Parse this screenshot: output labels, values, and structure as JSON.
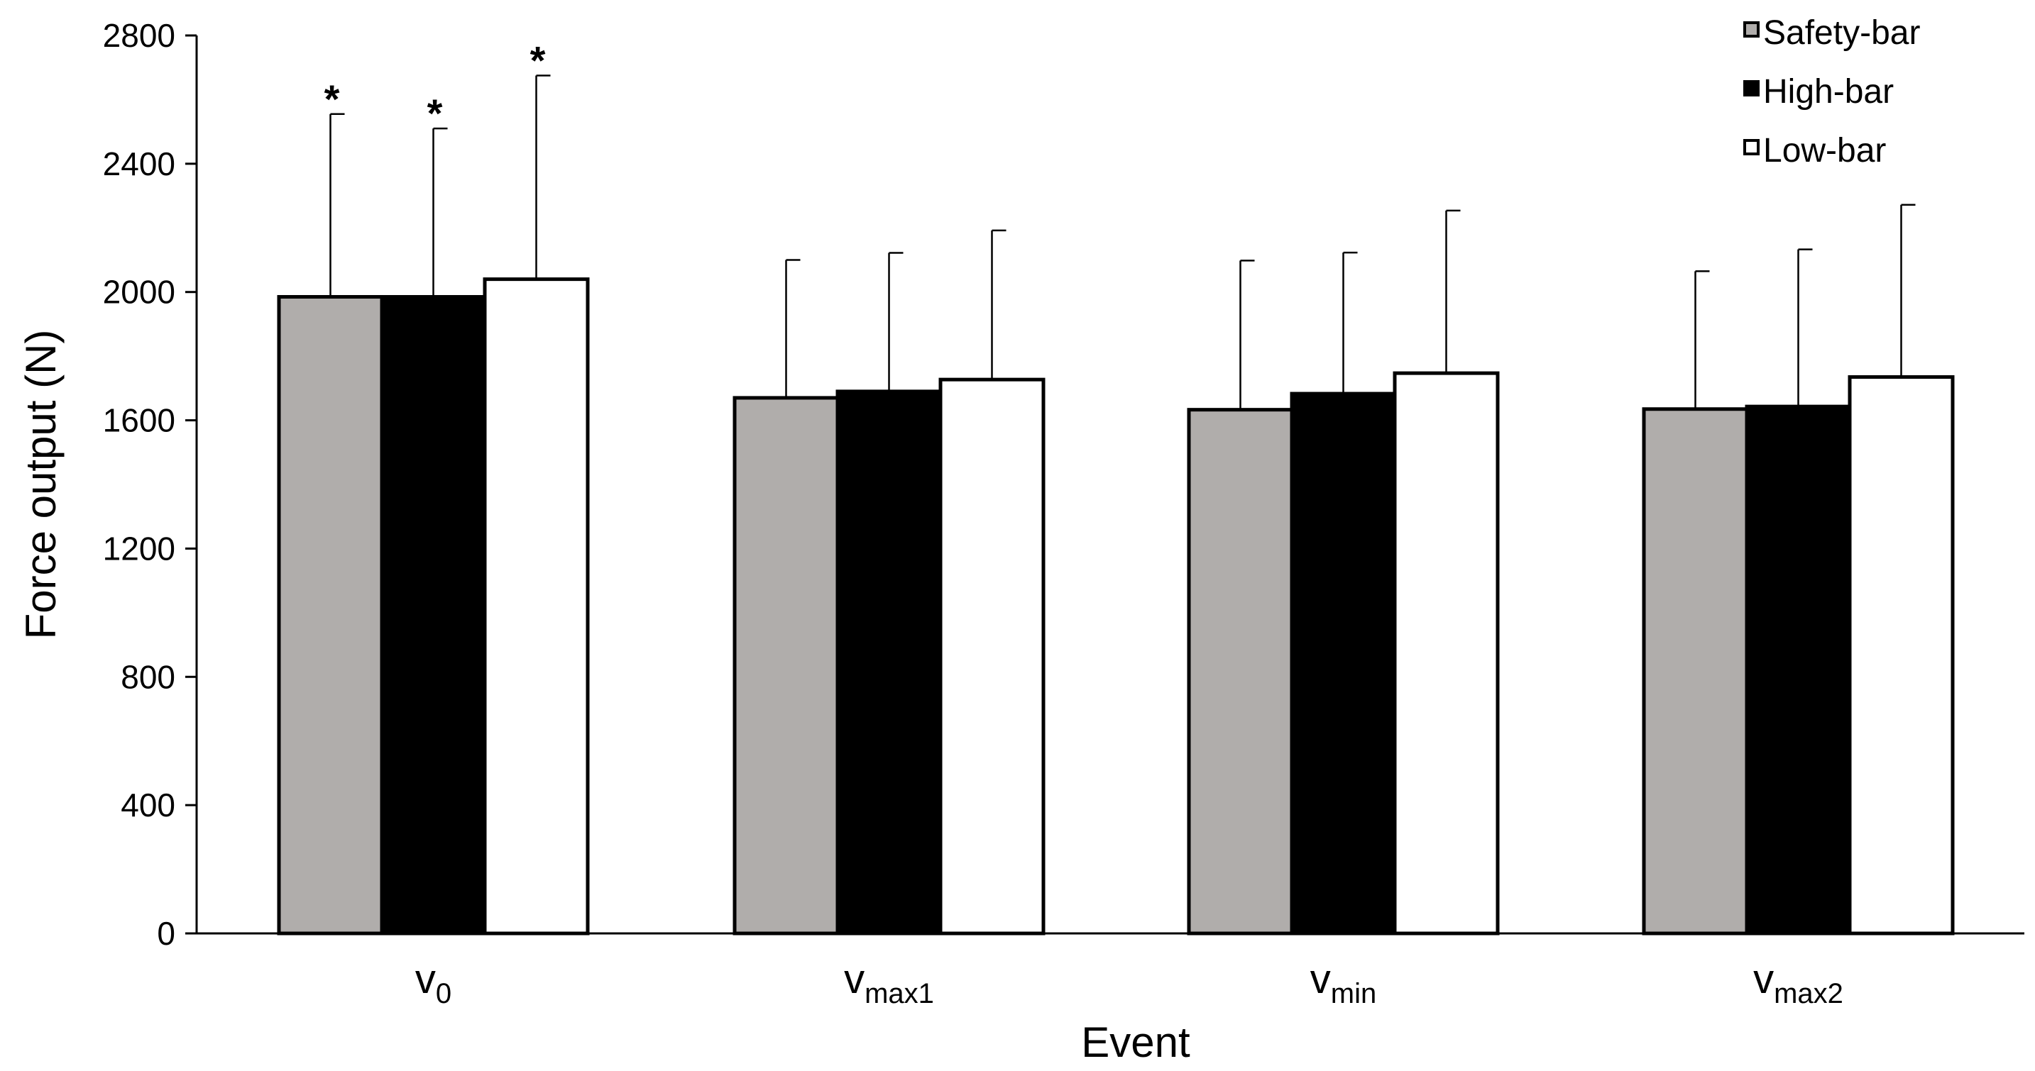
{
  "chart_data": {
    "type": "bar",
    "title": "",
    "xlabel": "Event",
    "ylabel": "Force output (N)",
    "ylim": [
      0,
      2800
    ],
    "yticks": [
      0,
      400,
      800,
      1200,
      1600,
      2000,
      2400,
      2800
    ],
    "grid": false,
    "legend_position": "top-right",
    "categories": [
      {
        "base": "v",
        "sub": "0"
      },
      {
        "base": "v",
        "sub": "max1"
      },
      {
        "base": "v",
        "sub": "min"
      },
      {
        "base": "v",
        "sub": "max2"
      }
    ],
    "series": [
      {
        "name": "Safety-bar",
        "color": "#b0adab",
        "values": [
          1985,
          1670,
          1633,
          1635
        ],
        "error": [
          570,
          430,
          465,
          430
        ]
      },
      {
        "name": "High-bar",
        "color": "#000000",
        "values": [
          1985,
          1690,
          1683,
          1643
        ],
        "error": [
          525,
          432,
          440,
          490
        ]
      },
      {
        "name": "Low-bar",
        "color": "#ffffff",
        "values": [
          2040,
          1727,
          1747,
          1735
        ],
        "error": [
          635,
          465,
          507,
          537
        ]
      }
    ],
    "annotations": [
      {
        "category_index": 0,
        "series_index": 0,
        "text": "*"
      },
      {
        "category_index": 0,
        "series_index": 1,
        "text": "*"
      },
      {
        "category_index": 0,
        "series_index": 2,
        "text": "*"
      }
    ]
  }
}
